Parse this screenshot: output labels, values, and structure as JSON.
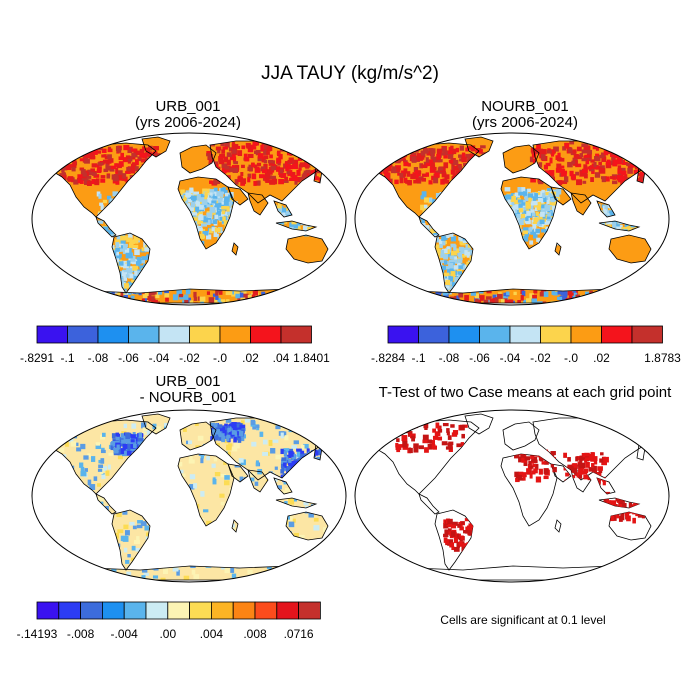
{
  "title": "JJA TAUY (kg/m/s^2)",
  "panels": {
    "top_left": {
      "title_line1": "URB_001",
      "title_line2": "(yrs 2006-2024)"
    },
    "top_right": {
      "title_line1": "NOURB_001",
      "title_line2": "(yrs 2006-2024)"
    },
    "bottom_left": {
      "title_line1": "URB_001",
      "title_line2": "- NOURB_001"
    },
    "bottom_right": {
      "title_line1": "T-Test of two Case means at each grid point"
    }
  },
  "colorbars": {
    "top_left": {
      "colors": [
        "#3a12f0",
        "#3c62dc",
        "#1e90f0",
        "#5ab4ec",
        "#c4e4f4",
        "#fcd44c",
        "#fc9c14",
        "#f4141c",
        "#c4302c"
      ],
      "labels": [
        "-.8291",
        "-.1",
        "-.08",
        "-.06",
        "-.04",
        "-.02",
        "-.0",
        ".02",
        ".04",
        "1.8401"
      ]
    },
    "top_right": {
      "colors": [
        "#3a12f0",
        "#3c62dc",
        "#1e90f0",
        "#5ab4ec",
        "#c4e4f4",
        "#fcd44c",
        "#fc9c14",
        "#f4141c",
        "#c4302c"
      ],
      "labels": [
        "-.8284",
        "-.1",
        "-.08",
        "-.06",
        "-.04",
        "-.02",
        "-.0",
        ".02",
        "",
        "1.8783"
      ]
    },
    "bottom_left": {
      "colors": [
        "#3a12f0",
        "#2c3cf4",
        "#3c6cdc",
        "#1e90f0",
        "#5ab4ec",
        "#ccecf4",
        "#fcf4b4",
        "#fcdc54",
        "#fcb424",
        "#fc8414",
        "#fc4c1c",
        "#e4141c",
        "#c4302c"
      ],
      "labels": [
        "-.14193",
        "",
        "-.008",
        "",
        "-.004",
        "",
        ".00",
        "",
        ".004",
        "",
        ".008",
        "",
        ".0716"
      ]
    }
  },
  "significance_note": "Cells are significant at 0.1 level",
  "map_colors": {
    "dominant_top": "#fc9c14",
    "hot_top": "#e41c1c",
    "cool_top": "#9cd0ec",
    "diff_land": "#fce6a4",
    "diff_blue": "#5a9ce4",
    "ttest_sig": "#e41414"
  }
}
